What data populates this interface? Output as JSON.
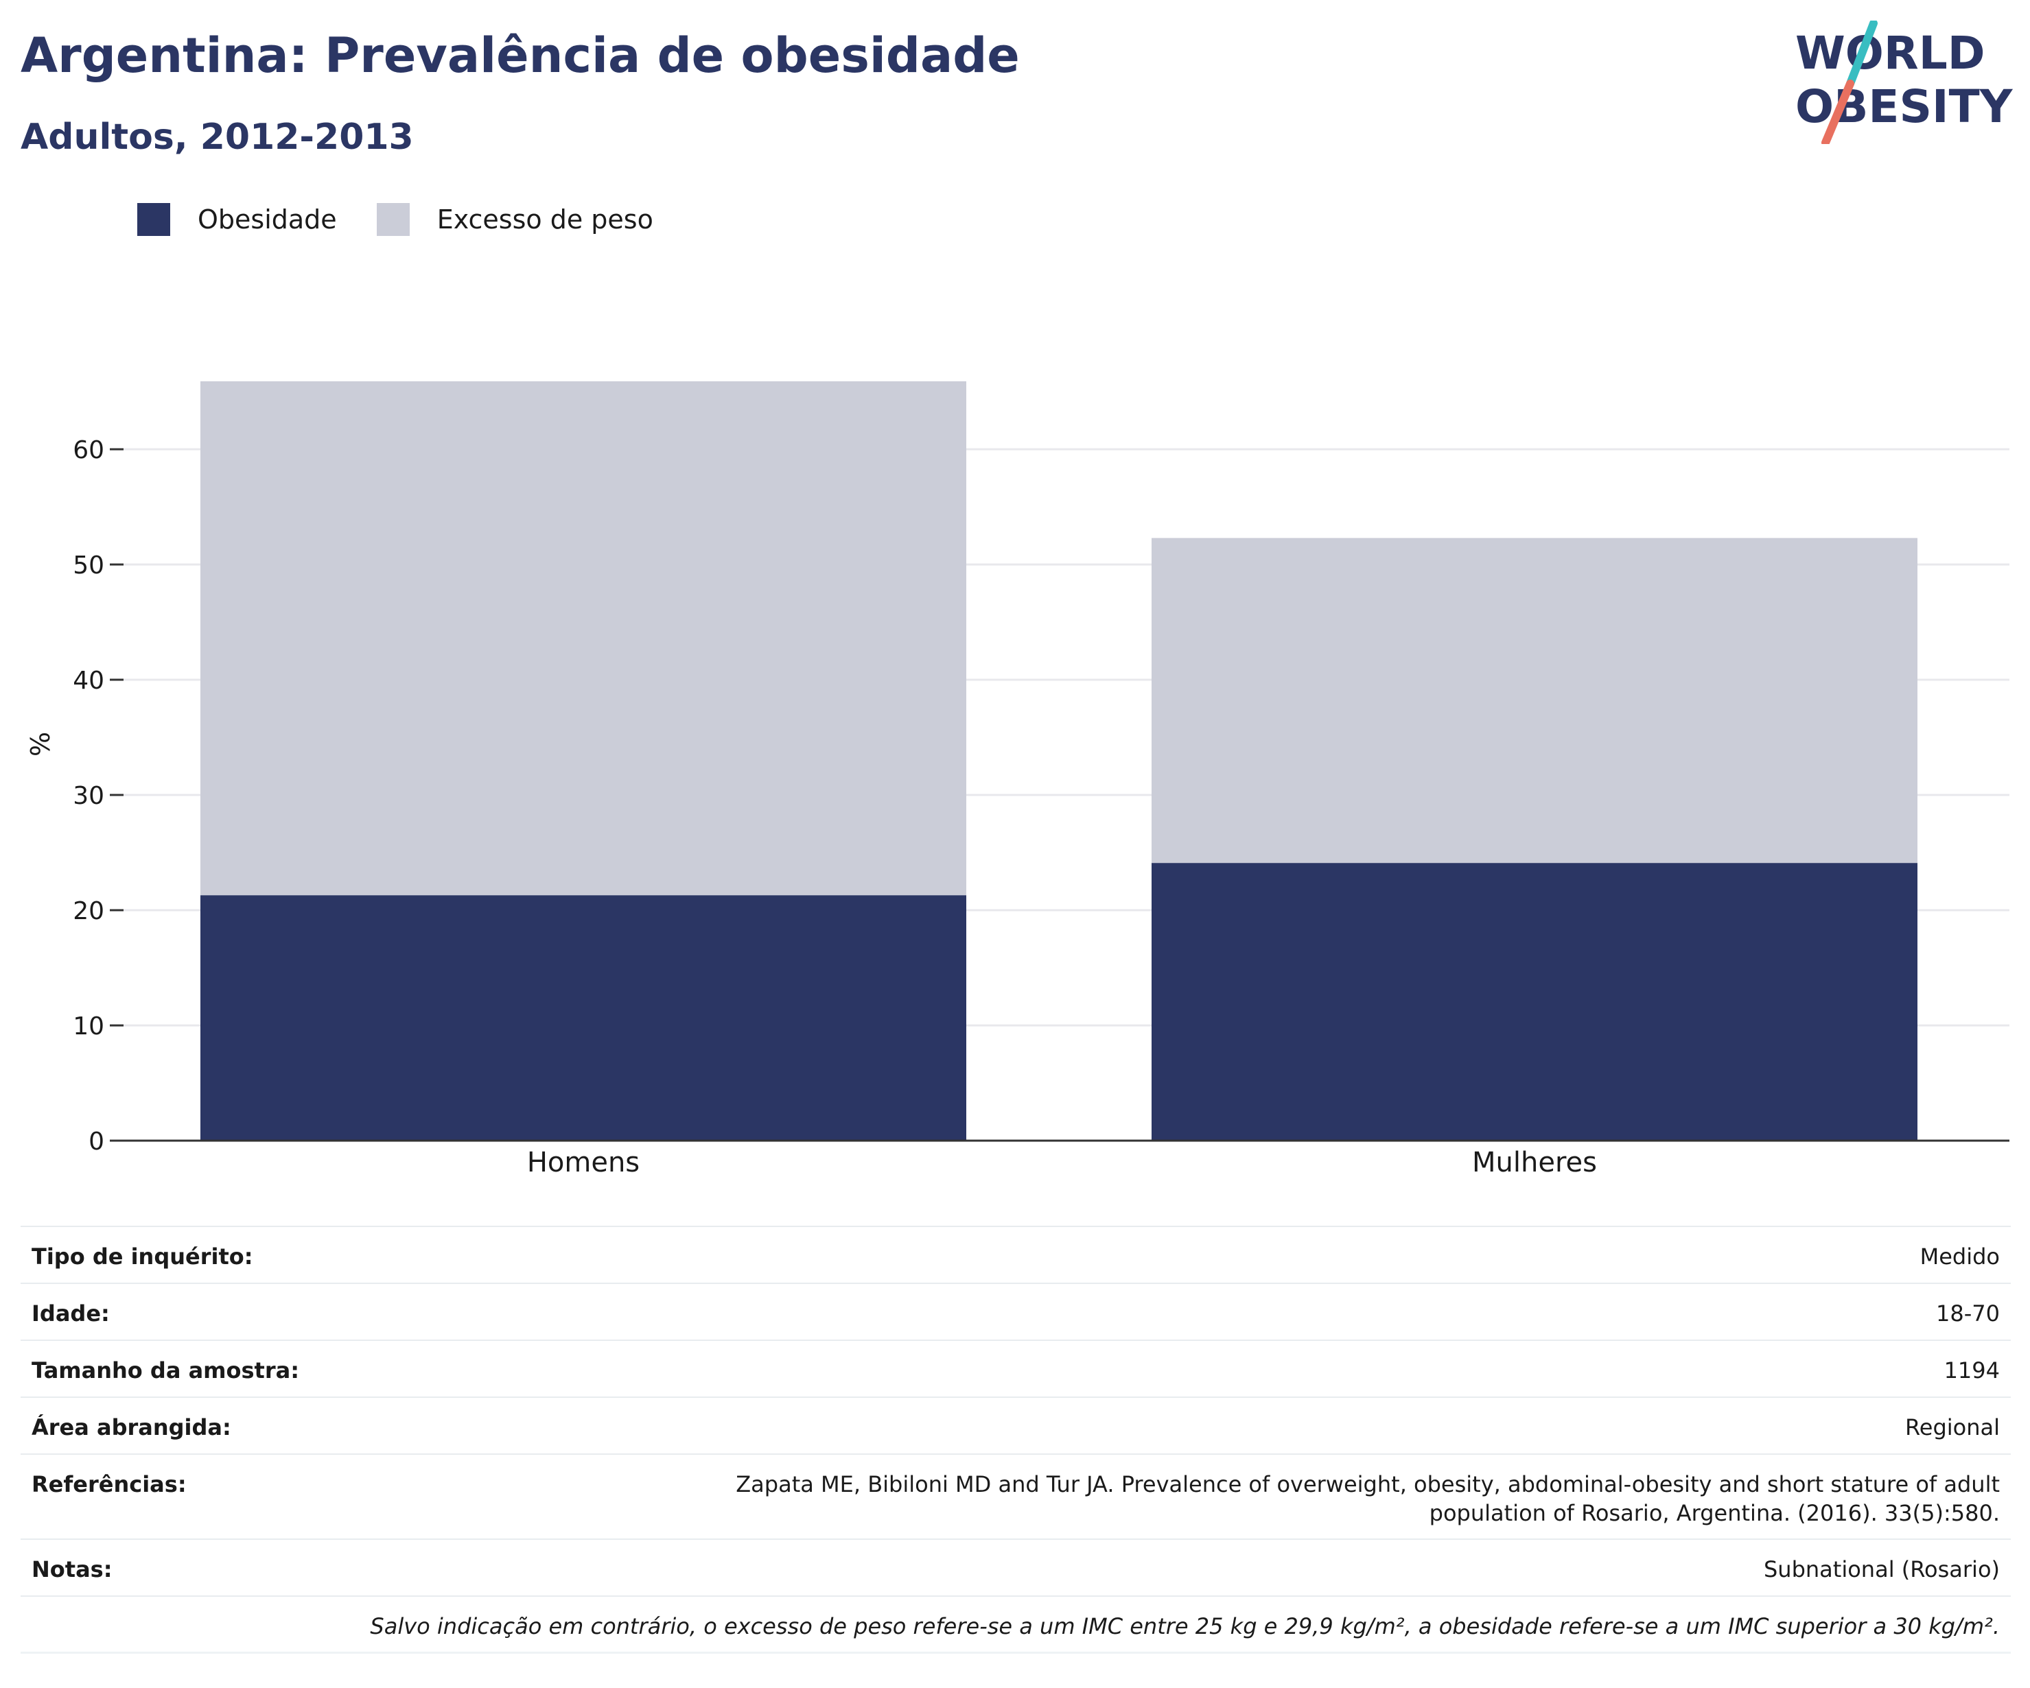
{
  "header": {
    "title": "Argentina: Prevalência de obesidade",
    "subtitle": "Adultos, 2012-2013",
    "logo_line1": "WORLD",
    "logo_line2": "OBESITY"
  },
  "colors": {
    "title": "#2b3664",
    "obesity": "#2b3664",
    "overweight": "#cbcdd8",
    "logo_slash_teal": "#38bdc1",
    "logo_slash_coral": "#e8705f"
  },
  "legend": {
    "items": [
      {
        "label": "Obesidade",
        "color": "#2b3664"
      },
      {
        "label": "Excesso de peso",
        "color": "#cbcdd8"
      }
    ]
  },
  "chart_data": {
    "type": "bar",
    "stacked": true,
    "categories": [
      "Homens",
      "Mulheres"
    ],
    "series": [
      {
        "name": "Obesidade",
        "values": [
          21.3,
          24.1
        ]
      },
      {
        "name": "Excesso de peso",
        "values": [
          44.6,
          28.2
        ]
      }
    ],
    "title": "Argentina: Prevalência de obesidade",
    "subtitle": "Adultos, 2012-2013",
    "xlabel": "",
    "ylabel": "%",
    "ylim": [
      0,
      68
    ],
    "yticks": [
      0,
      10,
      20,
      30,
      40,
      50,
      60
    ],
    "grid": true,
    "legend_position": "top-left"
  },
  "info": {
    "survey_type_label": "Tipo de inquérito:",
    "survey_type_value": "Medido",
    "age_label": "Idade:",
    "age_value": "18-70",
    "sample_label": "Tamanho da amostra:",
    "sample_value": "1194",
    "area_label": "Área abrangida:",
    "area_value": "Regional",
    "refs_label": "Referências:",
    "refs_value": "Zapata ME, Bibiloni MD and Tur JA. Prevalence of overweight, obesity, abdominal-obesity and short stature of adult population of Rosario, Argentina. (2016). 33(5):580.",
    "notes_label": "Notas:",
    "notes_value": "Subnational (Rosario)",
    "footnote": "Salvo indicação em contrário, o excesso de peso refere-se a um IMC entre 25 kg e 29,9 kg/m², a obesidade refere-se a um IMC superior a 30 kg/m²."
  }
}
